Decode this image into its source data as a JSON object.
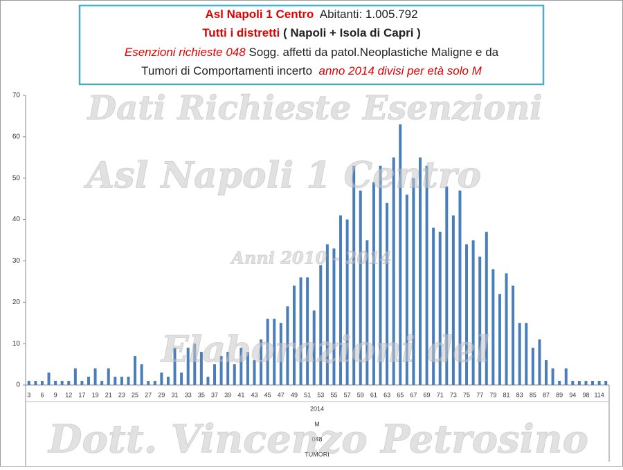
{
  "chart_data": {
    "type": "bar",
    "title_lines": [
      [
        {
          "text": "Asl Napoli 1 Centro",
          "color": "#e00000",
          "bold": true,
          "italic": false
        },
        {
          "text": "  Abitanti: 1.005.792",
          "color": "#222222",
          "bold": false,
          "italic": false
        }
      ],
      [
        {
          "text": "Tutti i distretti",
          "color": "#e00000",
          "bold": true,
          "italic": false
        },
        {
          "text": " ( Napoli + Isola di Capri )",
          "color": "#222222",
          "bold": true,
          "italic": false
        }
      ],
      [
        {
          "text": "Esenzioni richieste 048",
          "color": "#e00000",
          "bold": false,
          "italic": true
        },
        {
          "text": " Sogg. affetti da patol.Neoplastiche Maligne e da",
          "color": "#222222",
          "bold": false,
          "italic": false
        }
      ],
      [
        {
          "text": "Tumori di Comportamenti incerto",
          "color": "#222222",
          "bold": false,
          "italic": false
        },
        {
          "text": "  anno 2014 divisi per età solo M",
          "color": "#e00000",
          "bold": false,
          "italic": true
        }
      ]
    ],
    "watermarks": [
      "Dati Richieste Esenzioni",
      "Asl Napoli 1 Centro",
      "Anni 2010 - 2014",
      "Elaborazioni del",
      "Dott. Vincenzo Petrosino"
    ],
    "category_levels": [
      "2014",
      "M",
      "048",
      "TUMORI"
    ],
    "categories": [
      "3",
      null,
      "6",
      null,
      "9",
      null,
      "12",
      null,
      "17",
      null,
      "19",
      null,
      "21",
      null,
      "23",
      null,
      "25",
      null,
      "27",
      null,
      "29",
      null,
      "31",
      null,
      "33",
      null,
      "35",
      null,
      "37",
      null,
      "39",
      null,
      "41",
      null,
      "43",
      null,
      "45",
      null,
      "47",
      null,
      "49",
      null,
      "51",
      null,
      "53",
      null,
      "55",
      null,
      "57",
      null,
      "59",
      null,
      "61",
      null,
      "63",
      null,
      "65",
      null,
      "67",
      null,
      "69",
      null,
      "71",
      null,
      "73",
      null,
      "75",
      null,
      "77",
      null,
      "79",
      null,
      "81",
      null,
      "83",
      null,
      "85",
      null,
      "87",
      null,
      "89",
      null,
      "94",
      null,
      "98",
      null,
      "114",
      null
    ],
    "values": [
      1,
      1,
      1,
      3,
      1,
      1,
      1,
      4,
      1,
      2,
      4,
      1,
      4,
      2,
      2,
      2,
      7,
      5,
      1,
      1,
      3,
      2,
      9,
      3,
      9,
      10,
      8,
      2,
      5,
      7,
      8,
      5,
      9,
      8,
      6,
      11,
      16,
      16,
      15,
      19,
      24,
      26,
      26,
      18,
      29,
      34,
      33,
      41,
      40,
      53,
      47,
      35,
      49,
      53,
      44,
      55,
      63,
      46,
      50,
      55,
      53,
      38,
      37,
      48,
      41,
      47,
      34,
      35,
      31,
      37,
      28,
      22,
      27,
      24,
      15,
      15,
      9,
      11,
      6,
      4,
      1,
      4,
      1,
      1,
      1,
      1,
      1,
      1
    ],
    "color": "#4a7ebb",
    "ylim": [
      0,
      70
    ],
    "yticks": [
      0,
      10,
      20,
      30,
      40,
      50,
      60,
      70
    ],
    "grid": false
  }
}
